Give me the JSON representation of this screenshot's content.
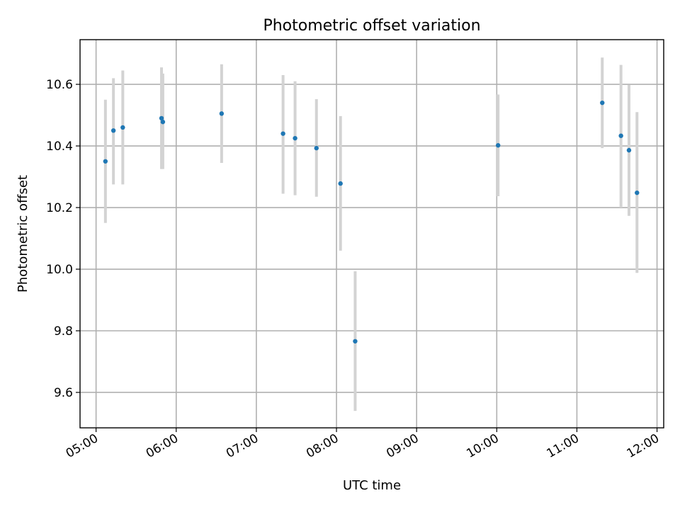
{
  "chart_data": {
    "type": "scatter",
    "title": "Photometric offset variation",
    "xlabel": "UTC time",
    "ylabel": "Photometric offset",
    "x_tick_labels": [
      "05:00",
      "06:00",
      "07:00",
      "08:00",
      "09:00",
      "10:00",
      "11:00",
      "12:00"
    ],
    "y_tick_labels": [
      "9.6",
      "9.8",
      "10.0",
      "10.2",
      "10.4",
      "10.6"
    ],
    "y_ticks": [
      9.6,
      9.8,
      10.0,
      10.2,
      10.4,
      10.6
    ],
    "xlim": [
      "04:48",
      "12:05"
    ],
    "ylim": [
      9.485,
      10.745
    ],
    "grid": true,
    "colors": {
      "points": "#1f77b4",
      "errorbars": "#d3d3d3",
      "grid": "#b0b0b0"
    },
    "series": [
      {
        "points": [
          {
            "x": "05:07",
            "y": 10.35,
            "yerr_low": 10.15,
            "yerr_high": 10.55
          },
          {
            "x": "05:13",
            "y": 10.45,
            "yerr_low": 10.275,
            "yerr_high": 10.62
          },
          {
            "x": "05:20",
            "y": 10.46,
            "yerr_low": 10.275,
            "yerr_high": 10.645
          },
          {
            "x": "05:49",
            "y": 10.49,
            "yerr_low": 10.325,
            "yerr_high": 10.655
          },
          {
            "x": "05:50",
            "y": 10.478,
            "yerr_low": 10.325,
            "yerr_high": 10.635
          },
          {
            "x": "06:34",
            "y": 10.505,
            "yerr_low": 10.345,
            "yerr_high": 10.665
          },
          {
            "x": "07:20",
            "y": 10.44,
            "yerr_low": 10.245,
            "yerr_high": 10.63
          },
          {
            "x": "07:29",
            "y": 10.425,
            "yerr_low": 10.24,
            "yerr_high": 10.61
          },
          {
            "x": "07:45",
            "y": 10.393,
            "yerr_low": 10.235,
            "yerr_high": 10.552
          },
          {
            "x": "08:03",
            "y": 10.278,
            "yerr_low": 10.06,
            "yerr_high": 10.497
          },
          {
            "x": "08:14",
            "y": 9.766,
            "yerr_low": 9.54,
            "yerr_high": 9.993
          },
          {
            "x": "10:01",
            "y": 10.402,
            "yerr_low": 10.237,
            "yerr_high": 10.567
          },
          {
            "x": "11:19",
            "y": 10.54,
            "yerr_low": 10.393,
            "yerr_high": 10.687
          },
          {
            "x": "11:33",
            "y": 10.433,
            "yerr_low": 10.2,
            "yerr_high": 10.663
          },
          {
            "x": "11:39",
            "y": 10.386,
            "yerr_low": 10.173,
            "yerr_high": 10.598
          },
          {
            "x": "11:45",
            "y": 10.248,
            "yerr_low": 9.988,
            "yerr_high": 10.51
          }
        ]
      }
    ]
  }
}
